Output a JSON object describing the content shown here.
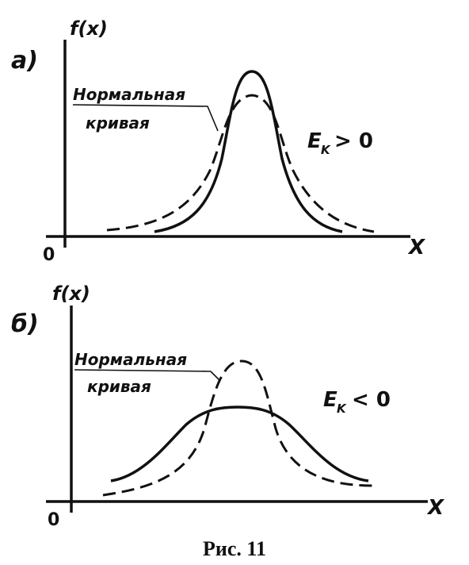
{
  "panels": [
    {
      "label": "а)",
      "y_axis": "f(x)",
      "x_axis": "X",
      "origin": "0",
      "normal_label": [
        "Нормальная",
        "кривая"
      ],
      "kurtosis": {
        "symbol": "E",
        "subscript": "K",
        "relation": "> 0"
      }
    },
    {
      "label": "б)",
      "y_axis": "f(x)",
      "x_axis": "X",
      "origin": "0",
      "normal_label": [
        "Нормальная",
        "кривая"
      ],
      "kurtosis": {
        "symbol": "E",
        "subscript": "K",
        "relation": "< 0"
      }
    }
  ],
  "caption": "Рис. 11"
}
